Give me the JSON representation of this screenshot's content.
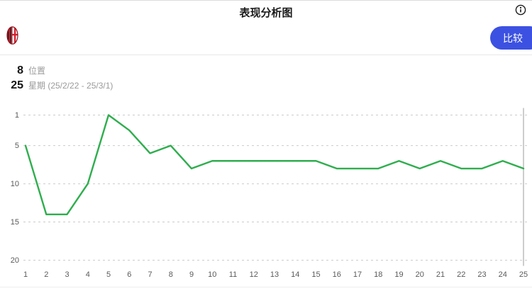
{
  "header": {
    "title": "表现分析图"
  },
  "icons": {
    "info": "info-icon",
    "team_logo": "ac-milan-crest"
  },
  "toolbar": {
    "compare_label": "比较"
  },
  "stats": {
    "position_value": "8",
    "position_label": "位置",
    "week_value": "25",
    "week_label": "星期 (25/2/22 - 25/3/1)"
  },
  "colors": {
    "accent_blue": "#3c51e1",
    "line_green": "#2fae4e",
    "grid_gray": "#cbcbcb",
    "axis_label_gray": "#5a5a5a",
    "current_week_line_gray": "#9b9b9b",
    "crest_red": "#d21e2b",
    "crest_black": "#141414"
  },
  "chart_data": {
    "type": "line",
    "title": "表现分析图",
    "xlabel": "星期",
    "ylabel": "位置",
    "x": [
      1,
      2,
      3,
      4,
      5,
      6,
      7,
      8,
      9,
      10,
      11,
      12,
      13,
      14,
      15,
      16,
      17,
      18,
      19,
      20,
      21,
      22,
      23,
      24,
      25
    ],
    "values": [
      5,
      14,
      14,
      10,
      1,
      3,
      6,
      5,
      8,
      7,
      7,
      7,
      7,
      7,
      7,
      8,
      8,
      8,
      7,
      8,
      7,
      8,
      8,
      7,
      8
    ],
    "yticks": [
      1,
      5,
      10,
      15,
      20
    ],
    "ylim": [
      1,
      20
    ],
    "y_inverted": true,
    "grid": "horizontal-dashed",
    "legend_position": "none",
    "line_color": "#2fae4e",
    "grid_color": "#cbcbcb",
    "current_week_marker": 25
  }
}
